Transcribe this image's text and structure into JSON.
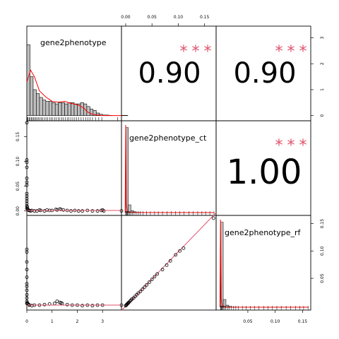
{
  "chart_data": {
    "type": "pairs-correlation-matrix",
    "variables": [
      "gene2phenotype",
      "gene2phenotype_ct",
      "gene2phenotype_rf"
    ],
    "colors": {
      "fit_line": "#DF536B",
      "density_line": "#FF0000",
      "stars": "#DF536B",
      "hist_fill": "#BEBEBE",
      "points": "#000000"
    },
    "axes": {
      "gene2phenotype": {
        "range": [
          0,
          3.75
        ],
        "ticks": [
          0,
          1,
          2,
          3
        ],
        "tick_labels": [
          "0",
          "1",
          "2",
          "3"
        ]
      },
      "gene2phenotype_ct": {
        "range": [
          -0.008,
          0.172
        ],
        "ticks": [
          0,
          0.05,
          0.1,
          0.15
        ],
        "tick_labels": [
          "0.00",
          "0.05",
          "0.10",
          "0.15"
        ]
      },
      "gene2phenotype_rf": {
        "range": [
          -0.008,
          0.165
        ],
        "ticks": [
          0.05,
          0.1,
          0.15
        ],
        "tick_labels": [
          "0.05",
          "0.10",
          "0.15"
        ]
      },
      "y_left_ct": {
        "range": [
          -0.009,
          0.182
        ],
        "ticks": [
          0,
          0.05,
          0.1,
          0.15
        ],
        "tick_labels": [
          "0.00",
          "0.05",
          "0.10",
          "0.15"
        ]
      },
      "y_right_hist": {
        "range": [
          -0.2,
          3.45
        ],
        "ticks": [
          0,
          1,
          2,
          3
        ],
        "tick_labels": [
          "0",
          "1",
          "2",
          "3"
        ]
      },
      "y_right_rf": {
        "range": [
          -0.008,
          0.165
        ],
        "ticks": [
          0.05,
          0.1,
          0.15
        ],
        "tick_labels": [
          "0.05",
          "0.10",
          "0.15"
        ]
      }
    },
    "correlations": [
      {
        "row": 1,
        "col": 2,
        "value": "0.90",
        "stars": "***"
      },
      {
        "row": 1,
        "col": 3,
        "value": "0.90",
        "stars": "***"
      },
      {
        "row": 2,
        "col": 3,
        "value": "1.00",
        "stars": "***"
      }
    ],
    "hist_gene2phenotype": {
      "bin_edges_start": 0,
      "bin_width": 0.125,
      "densities": [
        2.73,
        1.5,
        1.0,
        0.85,
        0.7,
        0.6,
        0.55,
        0.55,
        0.5,
        0.45,
        0.5,
        0.5,
        0.45,
        0.5,
        0.5,
        0.45,
        0.45,
        0.5,
        0.45,
        0.35,
        0.25,
        0.2,
        0.1,
        0.05,
        0.02,
        0.02,
        0.01,
        0.0,
        0.0,
        0.0,
        0.01,
        0.01
      ]
    },
    "density_gene2phenotype": {
      "x": [
        0,
        0.1,
        0.15,
        0.3,
        0.5,
        0.75,
        1.0,
        1.25,
        1.5,
        1.75,
        2.0,
        2.25,
        2.4,
        2.6,
        2.8,
        3.0,
        3.75
      ],
      "y": [
        1.3,
        1.6,
        1.75,
        1.5,
        0.95,
        0.72,
        0.55,
        0.52,
        0.55,
        0.47,
        0.42,
        0.3,
        0.14,
        0.05,
        0.02,
        0.0,
        0.0
      ]
    },
    "hist_gene2phenotype_ct": {
      "bin_edges_start": 0,
      "bin_width": 0.005,
      "densities": [
        3.3,
        0.3,
        0.08,
        0.03,
        0.01,
        0.01,
        0,
        0,
        0,
        0,
        0,
        0,
        0,
        0,
        0,
        0,
        0,
        0,
        0,
        0,
        0,
        0,
        0,
        0,
        0,
        0,
        0,
        0,
        0,
        0,
        0,
        0,
        0,
        0
      ]
    },
    "hist_gene2phenotype_rf": {
      "bin_edges_start": 0,
      "bin_width": 0.005,
      "densities": [
        3.3,
        0.3,
        0.08,
        0.03,
        0.01,
        0.01,
        0,
        0,
        0,
        0,
        0,
        0,
        0,
        0,
        0,
        0,
        0,
        0,
        0,
        0,
        0,
        0,
        0,
        0,
        0,
        0,
        0,
        0,
        0,
        0,
        0,
        0,
        0
      ]
    },
    "rug_gene2phenotype": [
      0.02,
      0.05,
      0.09,
      0.13,
      0.18,
      0.22,
      0.27,
      0.31,
      0.36,
      0.41,
      0.46,
      0.52,
      0.58,
      0.63,
      0.7,
      0.76,
      0.83,
      0.9,
      0.96,
      1.03,
      1.1,
      1.17,
      1.24,
      1.31,
      1.38,
      1.45,
      1.52,
      1.6,
      1.67,
      1.74,
      1.82,
      1.9,
      1.98,
      2.06,
      2.15,
      2.24,
      2.33,
      2.42,
      2.5,
      2.6,
      2.72,
      2.85,
      2.97,
      3.6
    ],
    "rug_gene2phenotype_ct": [
      0.0,
      0.001,
      0.002,
      0.003,
      0.004,
      0.006,
      0.008,
      0.01,
      0.013,
      0.016,
      0.02,
      0.024,
      0.028,
      0.033,
      0.04,
      0.047,
      0.055,
      0.062,
      0.07,
      0.079,
      0.087,
      0.095,
      0.103,
      0.111,
      0.12,
      0.128,
      0.137,
      0.145,
      0.152,
      0.16,
      0.168
    ],
    "rug_gene2phenotype_rf": [
      0.0,
      0.001,
      0.002,
      0.003,
      0.004,
      0.006,
      0.008,
      0.01,
      0.013,
      0.016,
      0.02,
      0.024,
      0.028,
      0.033,
      0.04,
      0.047,
      0.055,
      0.062,
      0.07,
      0.079,
      0.087,
      0.095,
      0.103,
      0.111,
      0.12,
      0.128,
      0.137,
      0.145,
      0.152,
      0.16
    ],
    "scatter_g2p_vs_ct": {
      "x": [
        0,
        0,
        0,
        0,
        0,
        0,
        0,
        0,
        0,
        0,
        0,
        0,
        0,
        0,
        0.02,
        0.03,
        0.05,
        0.08,
        0.1,
        0.15,
        0.2,
        0.3,
        0.4,
        0.55,
        0.7,
        0.8,
        1.0,
        1.15,
        1.3,
        1.45,
        1.6,
        1.75,
        1.9,
        2.05,
        2.2,
        2.4,
        2.6,
        2.8,
        2.95,
        3.0,
        3.05,
        3.75,
        0.5,
        0.9,
        1.2,
        1.35
      ],
      "y": [
        0.178,
        0.103,
        0.098,
        0.088,
        0.066,
        0.058,
        0.052,
        0.035,
        0.03,
        0.025,
        0.02,
        0.015,
        0.01,
        0.005,
        0.008,
        0.004,
        0.002,
        0.001,
        0.001,
        0.0,
        0.001,
        0.0,
        0.0,
        0.001,
        0.0,
        0.002,
        0.001,
        0.003,
        0.004,
        0.002,
        0.001,
        0.0,
        0.001,
        0.0,
        0.0,
        0.001,
        0.0,
        0.0,
        0.001,
        0.002,
        0.0,
        0.0,
        0.002,
        0.001,
        0.002,
        0.003
      ]
    },
    "scatter_g2p_vs_rf": {
      "x": [
        0,
        0,
        0,
        0,
        0,
        0,
        0,
        0,
        0,
        0,
        0,
        0,
        0.02,
        0.05,
        0.08,
        0.1,
        0.2,
        0.3,
        0.5,
        0.7,
        0.9,
        1.1,
        1.3,
        1.4,
        1.6,
        1.8,
        2.0,
        2.2,
        2.4,
        2.6,
        2.8,
        3.0,
        3.75,
        1.2,
        1.35
      ],
      "y": [
        0.103,
        0.098,
        0.08,
        0.066,
        0.052,
        0.04,
        0.035,
        0.028,
        0.02,
        0.014,
        0.008,
        0.004,
        0.005,
        0.003,
        0.002,
        0.001,
        0.0,
        0.001,
        0.001,
        0.002,
        0.003,
        0.004,
        0.006,
        0.004,
        0.002,
        0.001,
        0.001,
        0.0,
        0.001,
        0.0,
        0.001,
        0.001,
        0.001,
        0.008,
        0.005
      ]
    },
    "scatter_ct_vs_rf": {
      "x": [
        0.0,
        0.001,
        0.002,
        0.003,
        0.004,
        0.005,
        0.006,
        0.008,
        0.01,
        0.012,
        0.015,
        0.018,
        0.021,
        0.024,
        0.028,
        0.032,
        0.036,
        0.04,
        0.045,
        0.05,
        0.055,
        0.06,
        0.07,
        0.078,
        0.085,
        0.095,
        0.103,
        0.11,
        0.167
      ],
      "y": [
        0.0,
        0.001,
        0.002,
        0.003,
        0.004,
        0.005,
        0.006,
        0.008,
        0.01,
        0.012,
        0.014,
        0.017,
        0.02,
        0.023,
        0.026,
        0.03,
        0.034,
        0.038,
        0.043,
        0.048,
        0.053,
        0.058,
        0.066,
        0.074,
        0.082,
        0.093,
        0.1,
        0.105,
        0.16
      ]
    },
    "fit_ct_vs_rf": {
      "x": [
        -0.008,
        0.172
      ],
      "y": [
        -0.009,
        0.17
      ]
    },
    "fit_g2p_vs_ct": {
      "x": [
        0,
        3.75
      ],
      "y": [
        0.001,
        0.001
      ]
    },
    "fit_g2p_vs_rf": {
      "x": [
        0,
        3.75
      ],
      "y": [
        0.001,
        0.001
      ]
    }
  }
}
